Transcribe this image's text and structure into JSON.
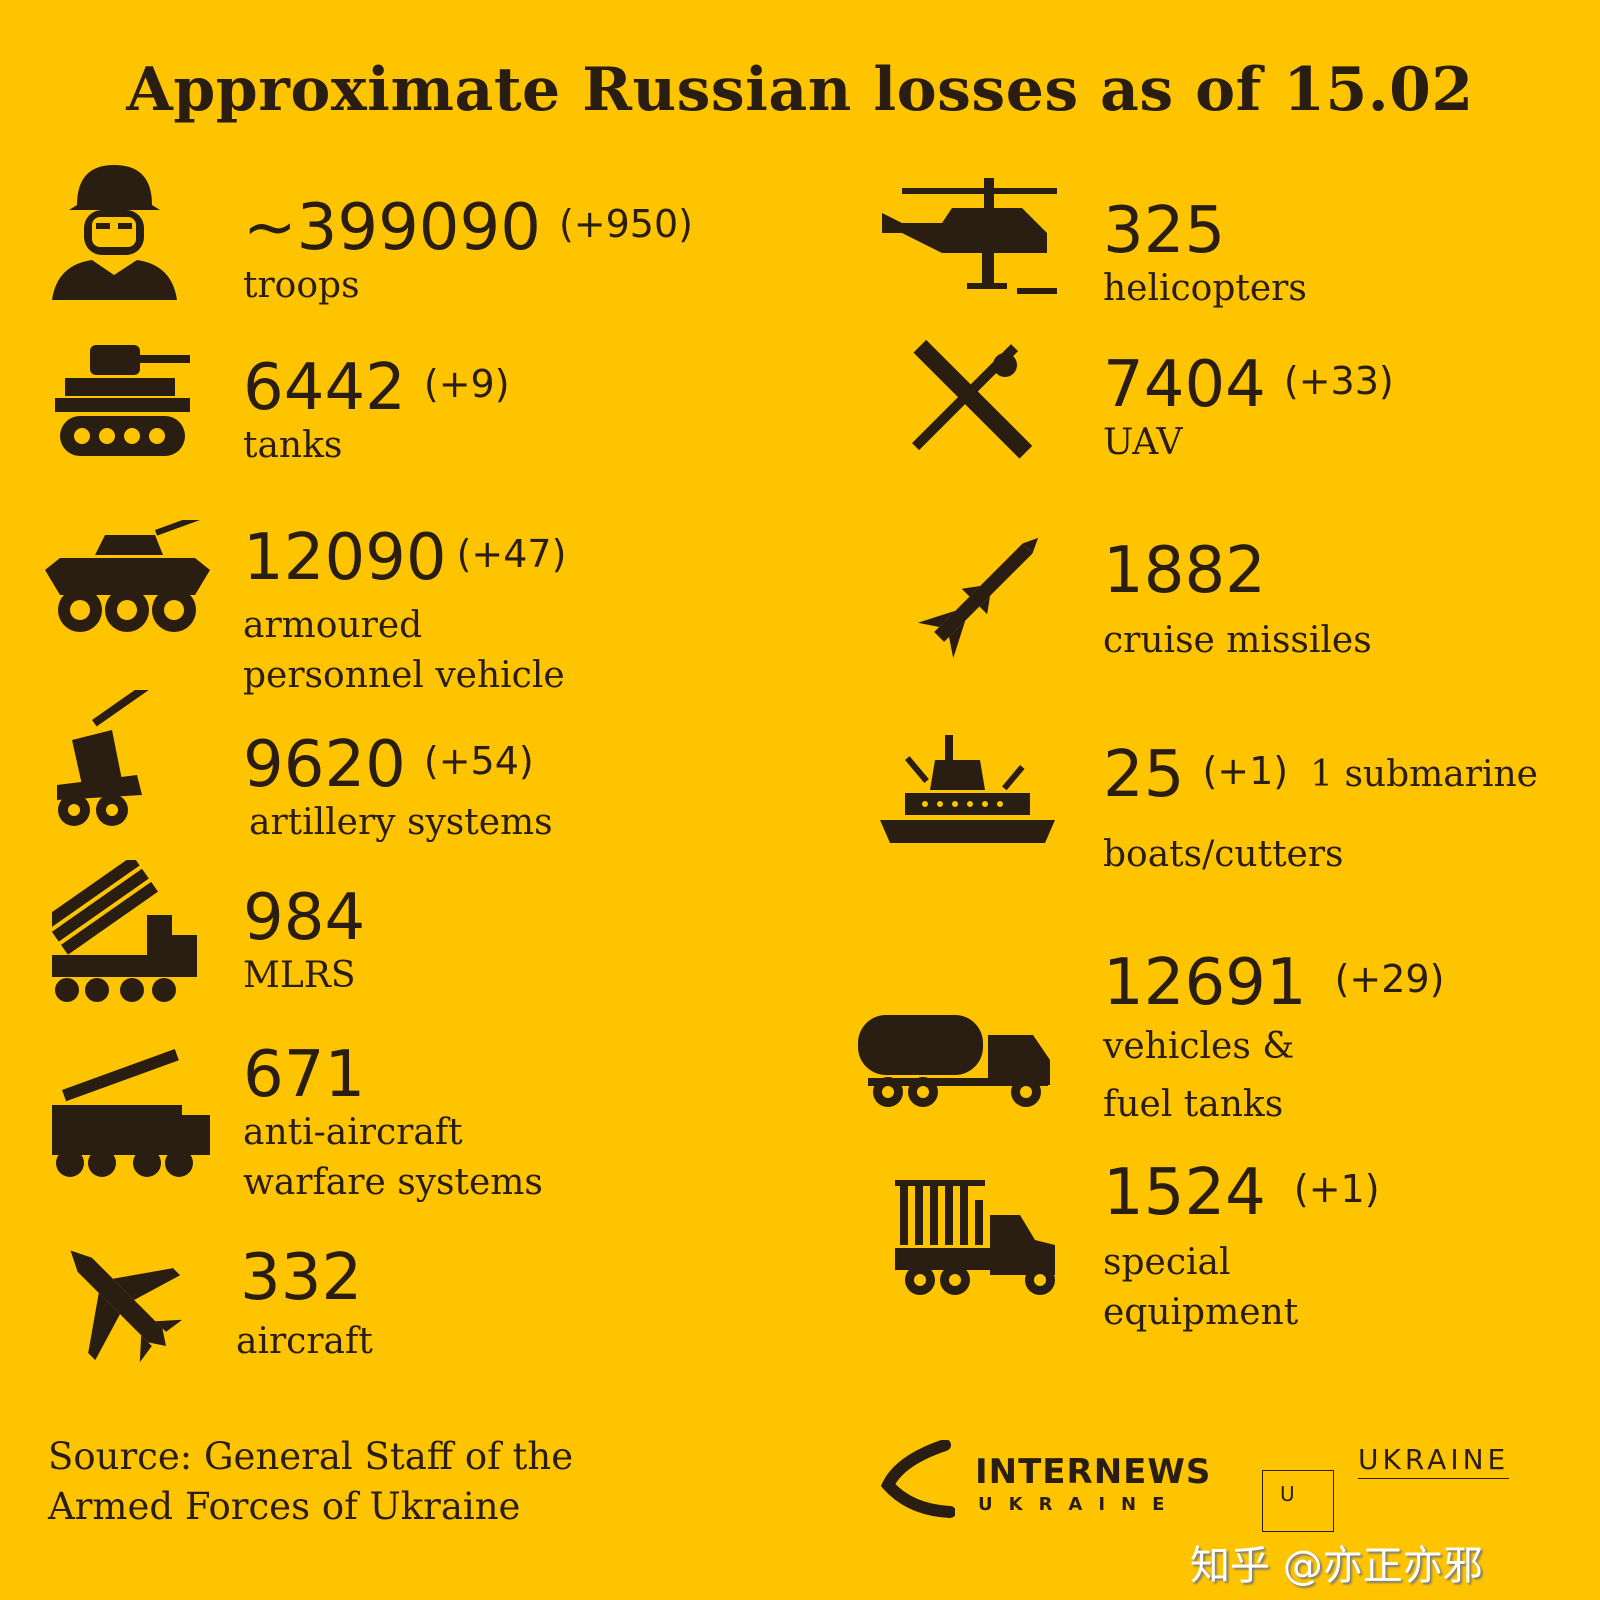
{
  "title": "Approximate Russian losses as of 15.02",
  "colors": {
    "background": "#FFC400",
    "text": "#2a1d12"
  },
  "left": [
    {
      "icon": "soldier-icon",
      "value": "~399090",
      "delta": "(+950)",
      "label": [
        "troops"
      ]
    },
    {
      "icon": "tank-icon",
      "value": "6442",
      "delta": "(+9)",
      "label": [
        "tanks"
      ]
    },
    {
      "icon": "apc-icon",
      "value": "12090",
      "delta": "(+47)",
      "label": [
        "armoured",
        "personnel vehicle"
      ]
    },
    {
      "icon": "artillery-icon",
      "value": "9620",
      "delta": "(+54)",
      "label": [
        "artillery systems"
      ]
    },
    {
      "icon": "mlrs-icon",
      "value": "984",
      "delta": "",
      "label": [
        "MLRS"
      ]
    },
    {
      "icon": "anti-aircraft-icon",
      "value": "671",
      "delta": "",
      "label": [
        "anti-aircraft",
        "warfare systems"
      ]
    },
    {
      "icon": "aircraft-icon",
      "value": "332",
      "delta": "",
      "label": [
        "aircraft"
      ]
    }
  ],
  "right": [
    {
      "icon": "helicopter-icon",
      "value": "325",
      "delta": "",
      "label": [
        "helicopters"
      ]
    },
    {
      "icon": "uav-icon",
      "value": "7404",
      "delta": "(+33)",
      "label": [
        "UAV"
      ]
    },
    {
      "icon": "cruise-missile-icon",
      "value": "1882",
      "delta": "",
      "label": [
        "cruise missiles"
      ]
    },
    {
      "icon": "ship-icon",
      "value": "25",
      "delta": "(+1)",
      "extra": "1 submarine",
      "label": [
        "boats/cutters"
      ]
    },
    {
      "icon": "fuel-truck-icon",
      "value": "12691",
      "delta": "(+29)",
      "label": [
        "vehicles &",
        "fuel tanks"
      ]
    },
    {
      "icon": "special-truck-icon",
      "value": "1524",
      "delta": "(+1)",
      "label": [
        "special",
        "equipment"
      ]
    }
  ],
  "source": [
    "Source: General Staff of the",
    "Armed Forces of Ukraine"
  ],
  "logos": {
    "internews": "INTERNEWS",
    "internews_sub": "UKRAINE",
    "ukraine_world_letter": "U",
    "ukraine_world": "UKRAINE"
  },
  "watermark": "知乎 @亦正亦邪"
}
